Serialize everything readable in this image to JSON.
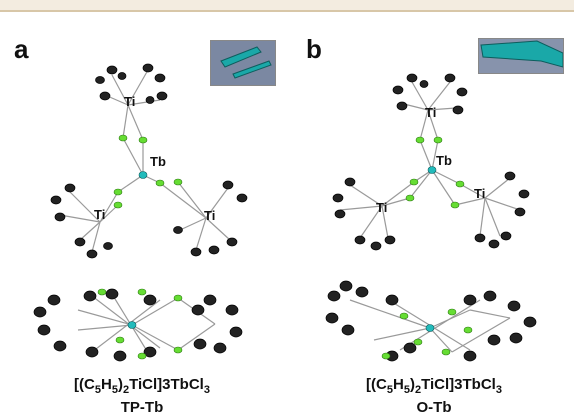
{
  "panels": [
    {
      "letter": "a",
      "atoms": {
        "ti_top": "Ti",
        "tb": "Tb",
        "ti_left": "Ti",
        "ti_right": "Ti"
      },
      "caption": {
        "formula": "[(C5H5)2TiCl]3TbCl3",
        "name": "TP-Tb"
      }
    },
    {
      "letter": "b",
      "atoms": {
        "ti_top": "Ti",
        "tb": "Tb",
        "ti_left": "Ti",
        "ti_right": "Ti"
      },
      "caption": {
        "formula": "[(C5H5)2TiCl]3TbCl3",
        "name": "O-Tb"
      }
    }
  ],
  "colors": {
    "chlorine": "#66dd33",
    "terbium": "#22bbbb",
    "carbon": "#222222",
    "bond": "#9a9a9a",
    "crystal": "#1aa8a8"
  }
}
